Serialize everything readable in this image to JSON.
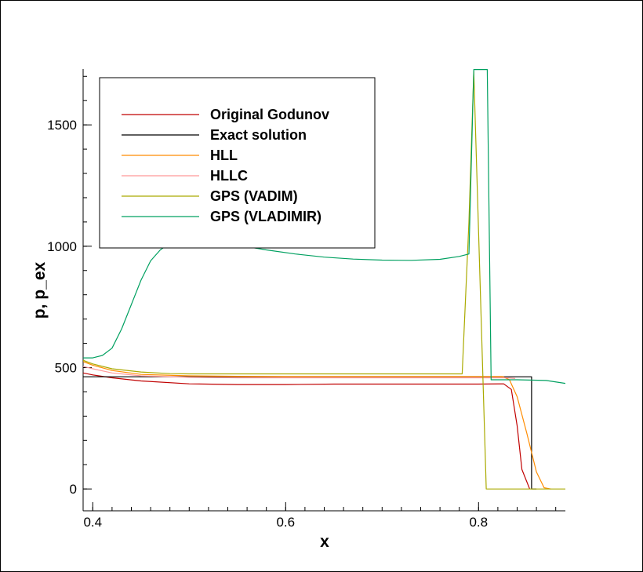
{
  "chart_data": {
    "type": "line",
    "xlabel": "x",
    "ylabel": "p, p_ex",
    "xlim": [
      0.39,
      0.89
    ],
    "ylim": [
      -90,
      1730
    ],
    "xticks": [
      0.4,
      0.6,
      0.8
    ],
    "xtick_labels": [
      "0.4",
      "0.6",
      "0.8"
    ],
    "yticks": [
      0,
      500,
      1000,
      1500
    ],
    "ytick_labels": [
      "0",
      "500",
      "1000",
      "1500"
    ],
    "x_minor_step": 0.02,
    "y_minor_step": 100,
    "grid": false,
    "legend_position": "top-left",
    "series": [
      {
        "name": "Original Godunov",
        "color": "#c00000",
        "x": [
          0.39,
          0.4,
          0.42,
          0.45,
          0.5,
          0.55,
          0.6,
          0.65,
          0.7,
          0.75,
          0.8,
          0.826,
          0.834,
          0.84,
          0.845,
          0.853
        ],
        "y": [
          478,
          470,
          458,
          445,
          433,
          430,
          430,
          432,
          432,
          432,
          432,
          433,
          410,
          260,
          80,
          0
        ]
      },
      {
        "name": "Exact solution",
        "color": "#000000",
        "x": [
          0.39,
          0.849,
          0.849,
          0.855,
          0.855,
          0.86
        ],
        "y": [
          462,
          462,
          462,
          462,
          0,
          0
        ]
      },
      {
        "name": "HLL",
        "color": "#ff8c00",
        "x": [
          0.39,
          0.4,
          0.42,
          0.45,
          0.5,
          0.55,
          0.6,
          0.65,
          0.7,
          0.75,
          0.8,
          0.825,
          0.832,
          0.84,
          0.85,
          0.86,
          0.868,
          0.875
        ],
        "y": [
          525,
          510,
          488,
          472,
          466,
          464,
          463,
          463,
          463,
          463,
          463,
          463,
          450,
          380,
          230,
          70,
          5,
          0
        ]
      },
      {
        "name": "HLLC",
        "color": "#ff9999",
        "x": [
          0.39,
          0.4,
          0.42,
          0.45,
          0.5,
          0.55,
          0.6,
          0.65,
          0.7,
          0.75,
          0.8,
          0.83,
          0.838
        ],
        "y": [
          505,
          495,
          478,
          466,
          460,
          458,
          458,
          458,
          458,
          458,
          458,
          458,
          455
        ]
      },
      {
        "name": "GPS (VADIM)",
        "color": "#aaaa00",
        "x": [
          0.39,
          0.4,
          0.42,
          0.45,
          0.48,
          0.5,
          0.6,
          0.7,
          0.783,
          0.79,
          0.795,
          0.808,
          0.85,
          0.89
        ],
        "y": [
          530,
          515,
          495,
          482,
          475,
          474,
          474,
          474,
          474,
          1100,
          1720,
          0,
          0,
          0
        ]
      },
      {
        "name": "GPS (VLADIMIR)",
        "color": "#00a060",
        "x": [
          0.39,
          0.4,
          0.41,
          0.42,
          0.43,
          0.44,
          0.45,
          0.46,
          0.47,
          0.48,
          0.49,
          0.5,
          0.52,
          0.55,
          0.58,
          0.61,
          0.64,
          0.67,
          0.7,
          0.73,
          0.76,
          0.78,
          0.79,
          0.795,
          0.803,
          0.809,
          0.813,
          0.82,
          0.84,
          0.87,
          0.89
        ],
        "y": [
          540,
          540,
          550,
          580,
          660,
          760,
          860,
          940,
          985,
          1013,
          1025,
          1028,
          1022,
          1005,
          985,
          968,
          955,
          947,
          943,
          942,
          946,
          958,
          968,
          1728,
          1728,
          1728,
          450,
          450,
          450,
          447,
          435
        ]
      }
    ]
  }
}
